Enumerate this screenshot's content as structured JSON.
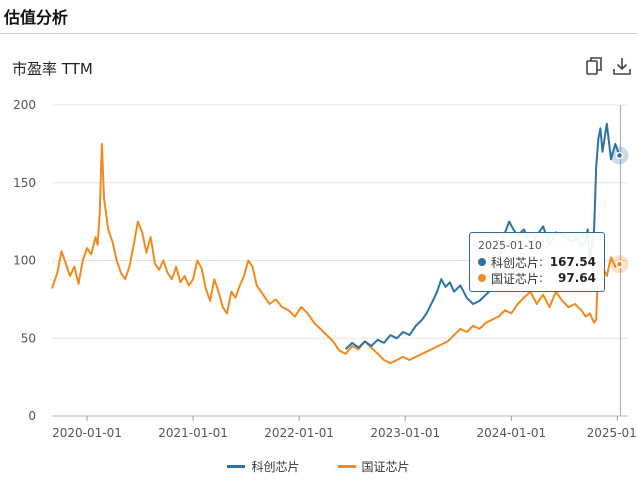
{
  "section_title": "估值分析",
  "chart_title": "市盈率 TTM",
  "toolbar": {
    "copy_icon": "copy-icon",
    "download_icon": "download-icon"
  },
  "tooltip": {
    "date": "2025-01-10",
    "rows": [
      {
        "name": "科创芯片",
        "value": "167.54"
      },
      {
        "name": "国证芯片",
        "value": "97.64"
      }
    ]
  },
  "chart_data": {
    "type": "line",
    "title": "市盈率 TTM",
    "xlabel": "",
    "ylabel": "",
    "ylim": [
      0,
      200
    ],
    "yticks": [
      0,
      50,
      100,
      150,
      200
    ],
    "xlim": [
      2019.67,
      2025.1
    ],
    "xticks": [
      {
        "label": "2020-01-01",
        "x": 2020.0
      },
      {
        "label": "2021-01-01",
        "x": 2021.0
      },
      {
        "label": "2022-01-01",
        "x": 2022.0
      },
      {
        "label": "2023-01-01",
        "x": 2023.0
      },
      {
        "label": "2024-01-01",
        "x": 2024.0
      },
      {
        "label": "2025-01...",
        "x": 2025.0
      }
    ],
    "series": [
      {
        "name": "科创芯片",
        "color": "#2b73a6",
        "x": [
          2022.44,
          2022.5,
          2022.56,
          2022.62,
          2022.68,
          2022.74,
          2022.8,
          2022.86,
          2022.92,
          2022.98,
          2023.04,
          2023.1,
          2023.16,
          2023.2,
          2023.26,
          2023.3,
          2023.34,
          2023.38,
          2023.42,
          2023.46,
          2023.52,
          2023.58,
          2023.64,
          2023.7,
          2023.76,
          2023.82,
          2023.88,
          2023.94,
          2023.98,
          2024.02,
          2024.06,
          2024.12,
          2024.18,
          2024.24,
          2024.3,
          2024.36,
          2024.42,
          2024.5,
          2024.56,
          2024.62,
          2024.66,
          2024.7,
          2024.72,
          2024.74,
          2024.78,
          2024.8,
          2024.82,
          2024.84,
          2024.86,
          2024.9,
          2024.94,
          2024.98,
          2025.02
        ],
        "y": [
          43,
          47,
          44,
          48,
          45,
          49,
          47,
          52,
          50,
          54,
          52,
          58,
          62,
          66,
          74,
          80,
          88,
          83,
          86,
          80,
          84,
          76,
          72,
          74,
          78,
          82,
          100,
          118,
          125,
          120,
          116,
          120,
          110,
          116,
          122,
          110,
          118,
          116,
          112,
          114,
          110,
          112,
          120,
          100,
          120,
          160,
          178,
          185,
          170,
          188,
          165,
          175,
          167.54
        ]
      },
      {
        "name": "国证芯片",
        "color": "#f08a1e",
        "x": [
          2019.67,
          2019.72,
          2019.76,
          2019.8,
          2019.84,
          2019.88,
          2019.92,
          2019.96,
          2020.0,
          2020.04,
          2020.08,
          2020.1,
          2020.12,
          2020.14,
          2020.16,
          2020.2,
          2020.24,
          2020.28,
          2020.32,
          2020.36,
          2020.4,
          2020.44,
          2020.48,
          2020.52,
          2020.56,
          2020.6,
          2020.64,
          2020.68,
          2020.72,
          2020.76,
          2020.8,
          2020.84,
          2020.88,
          2020.92,
          2020.96,
          2021.0,
          2021.04,
          2021.08,
          2021.12,
          2021.16,
          2021.2,
          2021.24,
          2021.28,
          2021.32,
          2021.36,
          2021.4,
          2021.44,
          2021.48,
          2021.52,
          2021.56,
          2021.6,
          2021.66,
          2021.72,
          2021.78,
          2021.84,
          2021.9,
          2021.96,
          2022.02,
          2022.08,
          2022.14,
          2022.2,
          2022.26,
          2022.32,
          2022.38,
          2022.44,
          2022.5,
          2022.56,
          2022.62,
          2022.68,
          2022.74,
          2022.8,
          2022.86,
          2022.92,
          2022.98,
          2023.04,
          2023.1,
          2023.16,
          2023.22,
          2023.28,
          2023.34,
          2023.4,
          2023.46,
          2023.52,
          2023.58,
          2023.64,
          2023.7,
          2023.76,
          2023.82,
          2023.88,
          2023.94,
          2024.0,
          2024.06,
          2024.12,
          2024.18,
          2024.24,
          2024.3,
          2024.36,
          2024.42,
          2024.48,
          2024.54,
          2024.6,
          2024.66,
          2024.7,
          2024.74,
          2024.78,
          2024.8,
          2024.82,
          2024.86,
          2024.9,
          2024.94,
          2024.98,
          2025.02
        ],
        "y": [
          82,
          92,
          106,
          98,
          90,
          96,
          85,
          100,
          108,
          104,
          115,
          110,
          130,
          175,
          140,
          120,
          112,
          100,
          92,
          88,
          96,
          110,
          125,
          118,
          105,
          115,
          98,
          94,
          100,
          92,
          88,
          96,
          86,
          90,
          84,
          88,
          100,
          95,
          82,
          74,
          88,
          80,
          70,
          66,
          80,
          76,
          84,
          90,
          100,
          96,
          84,
          78,
          72,
          75,
          70,
          68,
          64,
          70,
          66,
          60,
          56,
          52,
          48,
          42,
          40,
          45,
          43,
          48,
          44,
          40,
          36,
          34,
          36,
          38,
          36,
          38,
          40,
          42,
          44,
          46,
          48,
          52,
          56,
          54,
          58,
          56,
          60,
          62,
          64,
          68,
          66,
          72,
          76,
          80,
          72,
          78,
          70,
          80,
          74,
          70,
          72,
          68,
          64,
          66,
          60,
          62,
          100,
          96,
          90,
          102,
          96,
          97.64
        ]
      }
    ]
  }
}
